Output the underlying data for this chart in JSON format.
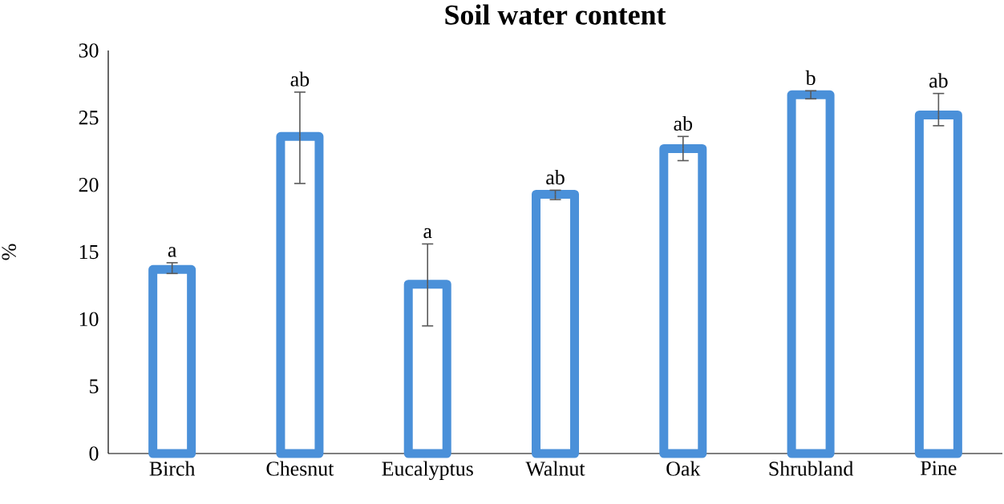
{
  "chart_data": {
    "type": "bar",
    "title": "Soil water content",
    "ylabel": "%",
    "categories": [
      "Birch",
      "Chesnut",
      "Eucalyptus",
      "Walnut",
      "Oak",
      "Shrubland",
      "Pine"
    ],
    "values": [
      13.7,
      23.6,
      12.6,
      19.3,
      22.7,
      26.7,
      25.2
    ],
    "errors": [
      [
        13.4,
        14.2
      ],
      [
        20.1,
        26.9
      ],
      [
        9.5,
        15.6
      ],
      [
        18.9,
        19.6
      ],
      [
        21.8,
        23.6
      ],
      [
        26.4,
        27.0
      ],
      [
        24.4,
        26.8
      ]
    ],
    "color": "#4a90d9",
    "ylim": [
      0,
      30
    ],
    "yticks": [
      0,
      5,
      10,
      15,
      20,
      25,
      30
    ],
    "grid": false,
    "annotations": [
      "a",
      "ab",
      "a",
      "ab",
      "ab",
      "b",
      "ab"
    ]
  }
}
